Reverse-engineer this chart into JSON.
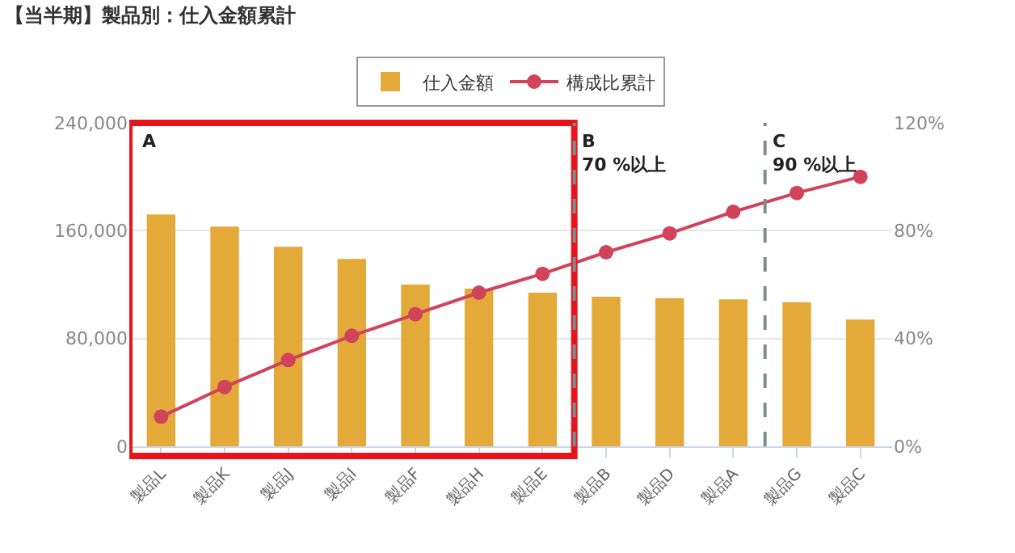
{
  "chart_data": {
    "type": "bar",
    "title": "【当半期】製品別：仕入金額累計",
    "categories": [
      "製品L",
      "製品K",
      "製品J",
      "製品I",
      "製品F",
      "製品H",
      "製品E",
      "製品B",
      "製品D",
      "製品A",
      "製品G",
      "製品C"
    ],
    "series": [
      {
        "name": "仕入金額",
        "color": "#e3aa3a",
        "values": [
          172000,
          163000,
          148000,
          139000,
          120000,
          117000,
          114000,
          111000,
          110000,
          109000,
          107000,
          94000
        ]
      },
      {
        "name": "構成比累計",
        "type": "line",
        "axis": "y2",
        "color": "#d0435a",
        "marker": "circle",
        "values": [
          11,
          22,
          32,
          41,
          49,
          57,
          64,
          72,
          79,
          87,
          94,
          100
        ]
      }
    ],
    "ylim": [
      0,
      240000
    ],
    "yticks": [
      {
        "value": 0,
        "label": "0"
      },
      {
        "value": 80000,
        "label": "80,000"
      },
      {
        "value": 160000,
        "label": "160,000"
      },
      {
        "value": 240000,
        "label": "240,000"
      }
    ],
    "y2lim": [
      0,
      120
    ],
    "y2ticks": [
      {
        "value": 0,
        "label": "0%"
      },
      {
        "value": 40,
        "label": "40%"
      },
      {
        "value": 80,
        "label": "80%"
      },
      {
        "value": 120,
        "label": "120%"
      }
    ],
    "annotations": [
      "A",
      "B\n70 %以上",
      "C\n90 %以上"
    ],
    "grid": "y",
    "legend": "top"
  }
}
